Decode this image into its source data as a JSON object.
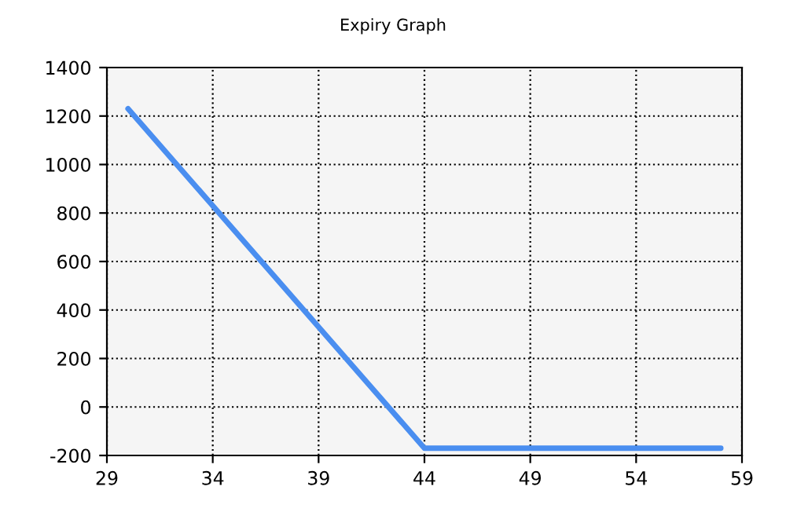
{
  "chart_data": {
    "type": "line",
    "title": "Expiry Graph",
    "x": [
      30,
      44,
      58
    ],
    "series": [
      {
        "color": "#4a8ef0",
        "values": [
          1230,
          -170,
          -170
        ]
      }
    ],
    "xlim": [
      29,
      59
    ],
    "xticks": [
      29,
      34,
      39,
      44,
      49,
      54,
      59
    ],
    "ylim": [
      -200,
      1400
    ],
    "yticks": [
      -200,
      0,
      200,
      400,
      600,
      800,
      1000,
      1200,
      1400
    ],
    "grid": true,
    "line_style": "solid",
    "marker": "none",
    "legend": false
  }
}
